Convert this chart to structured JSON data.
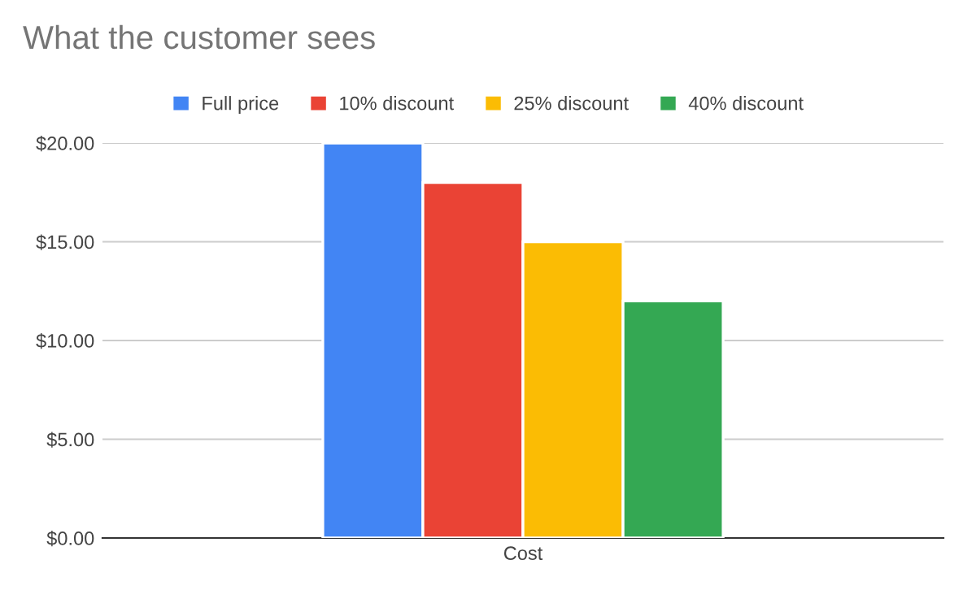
{
  "chart_data": {
    "type": "bar",
    "title": "What the customer sees",
    "categories": [
      "Cost"
    ],
    "series": [
      {
        "name": "Full price",
        "color": "#4285f4",
        "values": [
          20
        ]
      },
      {
        "name": "10% discount",
        "color": "#ea4335",
        "values": [
          18
        ]
      },
      {
        "name": "25% discount",
        "color": "#fbbc04",
        "values": [
          15
        ]
      },
      {
        "name": "40% discount",
        "color": "#34a853",
        "values": [
          12
        ]
      }
    ],
    "ylim": [
      0,
      20
    ],
    "yticks": [
      {
        "value": 0,
        "label": "$0.00"
      },
      {
        "value": 5,
        "label": "$5.00"
      },
      {
        "value": 10,
        "label": "$10.00"
      },
      {
        "value": 15,
        "label": "$15.00"
      },
      {
        "value": 20,
        "label": "$20.00"
      }
    ],
    "grid": "y",
    "legend": "top"
  }
}
